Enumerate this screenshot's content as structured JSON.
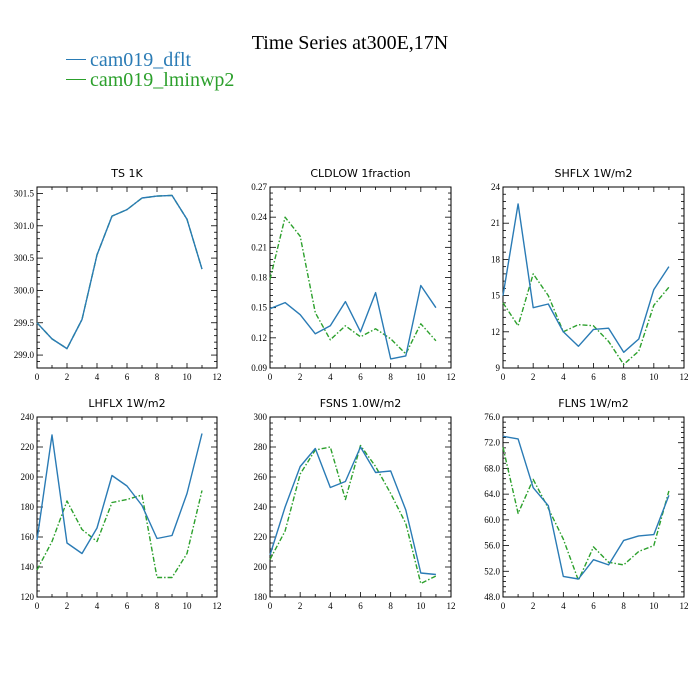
{
  "title": "Time Series at300E,17N",
  "legend": [
    {
      "label": "cam019_dflt",
      "color": "#2a7bb5",
      "dash": "solid"
    },
    {
      "label": "cam019_lminwp2",
      "color": "#2ca02c",
      "dash": "dashdot"
    }
  ],
  "chart_data": [
    {
      "type": "line",
      "title": "TS   1K",
      "x": [
        0,
        1,
        2,
        3,
        4,
        5,
        6,
        7,
        8,
        9,
        10,
        11
      ],
      "xlim": [
        0,
        12
      ],
      "xticks": [
        0,
        2,
        4,
        6,
        8,
        10,
        12
      ],
      "ylim": [
        298.8,
        301.6
      ],
      "yticks": [
        299.0,
        299.5,
        300.0,
        300.5,
        301.0,
        301.5
      ],
      "ydec": 1,
      "series": [
        {
          "name": "cam019_dflt",
          "values": [
            299.5,
            299.25,
            299.1,
            299.55,
            300.55,
            301.15,
            301.25,
            301.43,
            301.46,
            301.47,
            301.1,
            300.33
          ]
        },
        {
          "name": "cam019_lminwp2",
          "values": [
            299.5,
            299.25,
            299.1,
            299.55,
            300.55,
            301.15,
            301.25,
            301.43,
            301.46,
            301.47,
            301.1,
            300.33
          ]
        }
      ]
    },
    {
      "type": "line",
      "title": "CLDLOW   1fraction",
      "x": [
        0,
        1,
        2,
        3,
        4,
        5,
        6,
        7,
        8,
        9,
        10,
        11
      ],
      "xlim": [
        0,
        12
      ],
      "xticks": [
        0,
        2,
        4,
        6,
        8,
        10,
        12
      ],
      "ylim": [
        0.09,
        0.27
      ],
      "yticks": [
        0.09,
        0.12,
        0.15,
        0.18,
        0.21,
        0.24,
        0.27
      ],
      "ydec": 2,
      "series": [
        {
          "name": "cam019_dflt",
          "values": [
            0.149,
            0.155,
            0.143,
            0.124,
            0.132,
            0.156,
            0.126,
            0.165,
            0.099,
            0.102,
            0.172,
            0.15
          ]
        },
        {
          "name": "cam019_lminwp2",
          "values": [
            0.178,
            0.24,
            0.221,
            0.145,
            0.118,
            0.132,
            0.121,
            0.129,
            0.119,
            0.104,
            0.134,
            0.117
          ]
        }
      ]
    },
    {
      "type": "line",
      "title": "SHFLX   1W/m2",
      "x": [
        0,
        1,
        2,
        3,
        4,
        5,
        6,
        7,
        8,
        9,
        10,
        11
      ],
      "xlim": [
        0,
        12
      ],
      "xticks": [
        0,
        2,
        4,
        6,
        8,
        10,
        12
      ],
      "ylim": [
        9,
        24
      ],
      "yticks": [
        9,
        12,
        15,
        18,
        21,
        24
      ],
      "ydec": 0,
      "series": [
        {
          "name": "cam019_dflt",
          "values": [
            15.0,
            22.6,
            14.0,
            14.3,
            12.0,
            10.8,
            12.2,
            12.3,
            10.3,
            11.4,
            15.5,
            17.4
          ]
        },
        {
          "name": "cam019_lminwp2",
          "values": [
            14.4,
            12.5,
            16.8,
            15.0,
            12.0,
            12.6,
            12.5,
            11.2,
            9.3,
            10.4,
            14.2,
            15.7
          ]
        }
      ]
    },
    {
      "type": "line",
      "title": "LHFLX   1W/m2",
      "x": [
        0,
        1,
        2,
        3,
        4,
        5,
        6,
        7,
        8,
        9,
        10,
        11
      ],
      "xlim": [
        0,
        12
      ],
      "xticks": [
        0,
        2,
        4,
        6,
        8,
        10,
        12
      ],
      "ylim": [
        120,
        240
      ],
      "yticks": [
        120,
        140,
        160,
        180,
        200,
        220,
        240
      ],
      "ydec": 0,
      "series": [
        {
          "name": "cam019_dflt",
          "values": [
            158,
            228,
            156,
            149,
            166,
            201,
            194,
            181,
            159,
            161,
            189,
            229
          ]
        },
        {
          "name": "cam019_lminwp2",
          "values": [
            138,
            157,
            184,
            165,
            157,
            183,
            185,
            188,
            133,
            133,
            149,
            191
          ]
        }
      ]
    },
    {
      "type": "line",
      "title": "FSNS   1.0W/m2",
      "x": [
        0,
        1,
        2,
        3,
        4,
        5,
        6,
        7,
        8,
        9,
        10,
        11
      ],
      "xlim": [
        0,
        12
      ],
      "xticks": [
        0,
        2,
        4,
        6,
        8,
        10,
        12
      ],
      "ylim": [
        180,
        300
      ],
      "yticks": [
        180,
        200,
        220,
        240,
        260,
        280,
        300
      ],
      "ydec": 0,
      "series": [
        {
          "name": "cam019_dflt",
          "values": [
            208,
            240,
            267,
            279,
            253,
            257,
            280,
            263,
            264,
            238,
            196,
            195
          ]
        },
        {
          "name": "cam019_lminwp2",
          "values": [
            205,
            224,
            262,
            278,
            280,
            245,
            281,
            267,
            249,
            229,
            189,
            194
          ]
        }
      ]
    },
    {
      "type": "line",
      "title": "FLNS   1W/m2",
      "x": [
        0,
        1,
        2,
        3,
        4,
        5,
        6,
        7,
        8,
        9,
        10,
        11
      ],
      "xlim": [
        0,
        12
      ],
      "xticks": [
        0,
        2,
        4,
        6,
        8,
        10,
        12
      ],
      "ylim": [
        48,
        76
      ],
      "yticks": [
        48.0,
        52.0,
        56.0,
        60.0,
        64.0,
        68.0,
        72.0,
        76.0
      ],
      "ydec": 1,
      "series": [
        {
          "name": "cam019_dflt",
          "values": [
            73.0,
            72.6,
            65.0,
            62.2,
            51.2,
            50.8,
            53.8,
            53.0,
            56.8,
            57.5,
            57.7,
            63.8
          ]
        },
        {
          "name": "cam019_lminwp2",
          "values": [
            71.3,
            61.0,
            66.3,
            61.8,
            57.0,
            50.6,
            55.8,
            53.4,
            53.0,
            55.1,
            56.0,
            64.5
          ]
        }
      ]
    }
  ]
}
